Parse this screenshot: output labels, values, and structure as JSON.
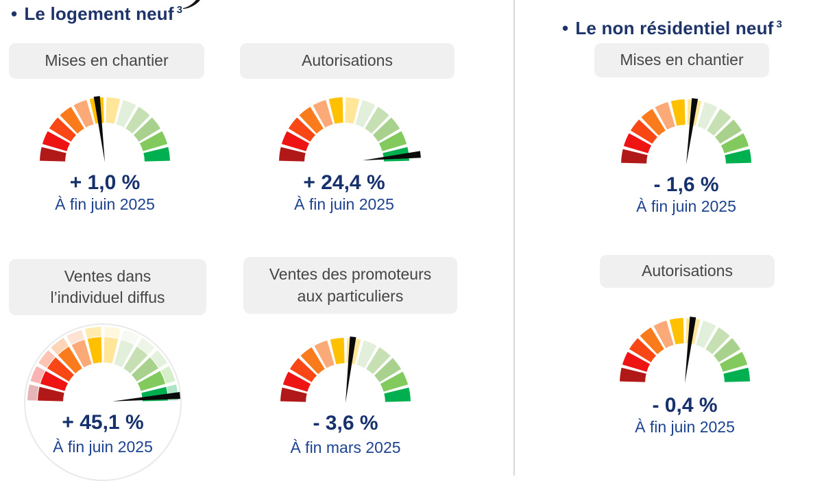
{
  "slide": {
    "left_section_title": {
      "bullet": "•",
      "text": "Le logement neuf",
      "superscript": "3"
    },
    "right_section_title": {
      "bullet": "•",
      "text": "Le non résidentiel neuf",
      "superscript": "3"
    },
    "colors": {
      "title_navy": "#1E3468",
      "value_navy": "#16316B",
      "date_blue": "#1C4290",
      "label_box_bg": "#F0F0F0",
      "label_text": "#454545",
      "divider": "#D8D8D8",
      "needle": "#0A0A0A",
      "ghost_circle": "#E9E9E9"
    },
    "gauge_palette": [
      "#B11818",
      "#EE1414",
      "#F84715",
      "#FA7B1C",
      "#FBA977",
      "#FFC000",
      "#FFE699",
      "#E2EFDA",
      "#C6E0B4",
      "#A9D18E",
      "#82C95E",
      "#00B050"
    ]
  },
  "chart_data": [
    {
      "type": "gauge",
      "panel": "logement-mises-en-chantier",
      "label": "Mises en chantier",
      "value": "+ 1,0 %",
      "value_num": 1.0,
      "date": "À fin juin 2025",
      "needle": {
        "angle_deg": -7,
        "tail_r": 0,
        "tip_r": 97,
        "half_width": 4.5
      },
      "ghost_ring": false
    },
    {
      "type": "gauge",
      "panel": "logement-autorisations",
      "label": "Autorisations",
      "value": "+ 24,4 %",
      "value_num": 24.4,
      "date": "À fin juin 2025",
      "needle": {
        "angle_deg": 84,
        "tail_r": 27,
        "tip_r": 112,
        "half_width": 5
      },
      "ghost_ring": false
    },
    {
      "type": "gauge",
      "panel": "logement-ventes-individuel-diffus",
      "label": "Ventes dans\nl’individuel diffus",
      "value": "+ 45,1 %",
      "value_num": 45.1,
      "date": "À fin juin 2025",
      "needle": {
        "angle_deg": 85,
        "tail_r": 14,
        "tip_r": 113,
        "half_width": 5
      },
      "ghost_ring": true
    },
    {
      "type": "gauge",
      "panel": "logement-ventes-promoteurs",
      "label": "Ventes des promoteurs\naux particuliers",
      "value": "- 3,6 %",
      "value_num": -3.6,
      "date": "À fin mars 2025",
      "needle": {
        "angle_deg": 6.5,
        "tail_r": 0,
        "tip_r": 97,
        "half_width": 4.5
      },
      "ghost_ring": false
    },
    {
      "type": "gauge",
      "panel": "non-residentiel-mises-en-chantier",
      "label": "Mises en chantier",
      "value": "- 1,6 %",
      "value_num": -1.6,
      "date": "À fin juin 2025",
      "needle": {
        "angle_deg": 7.5,
        "tail_r": 0,
        "tip_r": 97,
        "half_width": 4.5
      },
      "ghost_ring": false
    },
    {
      "type": "gauge",
      "panel": "non-residentiel-autorisations",
      "label": "Autorisations",
      "value": "- 0,4 %",
      "value_num": -0.4,
      "date": "À fin juin 2025",
      "needle": {
        "angle_deg": 7,
        "tail_r": 0,
        "tip_r": 97,
        "half_width": 4.5
      },
      "ghost_ring": false
    }
  ]
}
